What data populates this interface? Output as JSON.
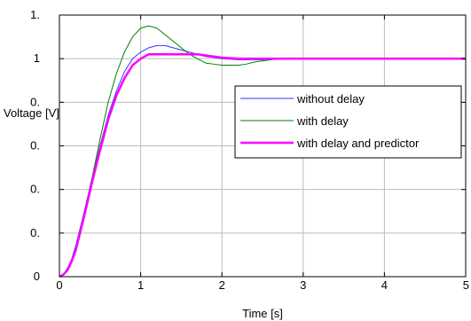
{
  "chart_data": {
    "type": "line",
    "xlabel": "Time [s]",
    "ylabel": "Voltage [V]",
    "xlim": [
      0,
      5
    ],
    "ylim": [
      0,
      1.2
    ],
    "grid": true,
    "legend_position": "right",
    "x_ticks": [
      {
        "value": 0,
        "label": "0"
      },
      {
        "value": 1,
        "label": "1"
      },
      {
        "value": 2,
        "label": "2"
      },
      {
        "value": 3,
        "label": "3"
      },
      {
        "value": 4,
        "label": "4"
      },
      {
        "value": 5,
        "label": "5"
      }
    ],
    "y_ticks": [
      {
        "value": 0,
        "label": "0"
      },
      {
        "value": 0.2,
        "label": "0."
      },
      {
        "value": 0.4,
        "label": "0."
      },
      {
        "value": 0.6,
        "label": "0."
      },
      {
        "value": 0.8,
        "label": "0."
      },
      {
        "value": 1.0,
        "label": "1"
      },
      {
        "value": 1.2,
        "label": "1."
      }
    ],
    "series": [
      {
        "name": "without delay",
        "color": "#3333ff",
        "x": [
          0,
          0.05,
          0.1,
          0.15,
          0.2,
          0.3,
          0.4,
          0.5,
          0.6,
          0.7,
          0.8,
          0.9,
          1.0,
          1.1,
          1.2,
          1.3,
          1.4,
          1.5,
          1.6,
          1.7,
          1.8,
          1.9,
          2.0,
          2.2,
          2.5,
          3.0,
          3.5,
          4.0,
          4.5,
          5.0
        ],
        "y": [
          0,
          0.01,
          0.04,
          0.08,
          0.14,
          0.29,
          0.45,
          0.6,
          0.74,
          0.85,
          0.94,
          1.0,
          1.03,
          1.05,
          1.06,
          1.06,
          1.05,
          1.04,
          1.03,
          1.02,
          1.01,
          1.005,
          1.0,
          0.995,
          0.995,
          1.0,
          1.0,
          1.0,
          1.0,
          1.0
        ]
      },
      {
        "name": "with delay",
        "color": "#008000",
        "x": [
          0,
          0.05,
          0.1,
          0.15,
          0.2,
          0.3,
          0.4,
          0.5,
          0.6,
          0.7,
          0.8,
          0.9,
          1.0,
          1.1,
          1.2,
          1.3,
          1.4,
          1.5,
          1.6,
          1.7,
          1.8,
          1.9,
          2.0,
          2.1,
          2.2,
          2.3,
          2.4,
          2.5,
          2.6,
          2.7,
          2.8,
          3.0,
          3.5,
          4.0,
          4.5,
          5.0
        ],
        "y": [
          0,
          0.01,
          0.03,
          0.07,
          0.13,
          0.28,
          0.45,
          0.63,
          0.8,
          0.93,
          1.03,
          1.1,
          1.14,
          1.15,
          1.14,
          1.11,
          1.08,
          1.05,
          1.02,
          1.0,
          0.98,
          0.975,
          0.97,
          0.97,
          0.97,
          0.975,
          0.985,
          0.99,
          0.995,
          1.0,
          1.0,
          1.0,
          1.0,
          1.0,
          1.0,
          1.0
        ]
      },
      {
        "name": "with delay and predictor",
        "color": "#ff00ff",
        "x": [
          0,
          0.05,
          0.1,
          0.15,
          0.2,
          0.3,
          0.4,
          0.5,
          0.6,
          0.7,
          0.8,
          0.9,
          1.0,
          1.1,
          1.2,
          1.3,
          1.5,
          1.7,
          1.9,
          2.0,
          2.2,
          2.5,
          3.0,
          3.5,
          4.0,
          4.5,
          5.0
        ],
        "y": [
          0,
          0.01,
          0.03,
          0.07,
          0.12,
          0.27,
          0.43,
          0.58,
          0.72,
          0.83,
          0.91,
          0.97,
          1.0,
          1.02,
          1.02,
          1.02,
          1.02,
          1.02,
          1.01,
          1.005,
          1.0,
          1.0,
          1.0,
          1.0,
          1.0,
          1.0,
          1.0
        ]
      }
    ]
  }
}
